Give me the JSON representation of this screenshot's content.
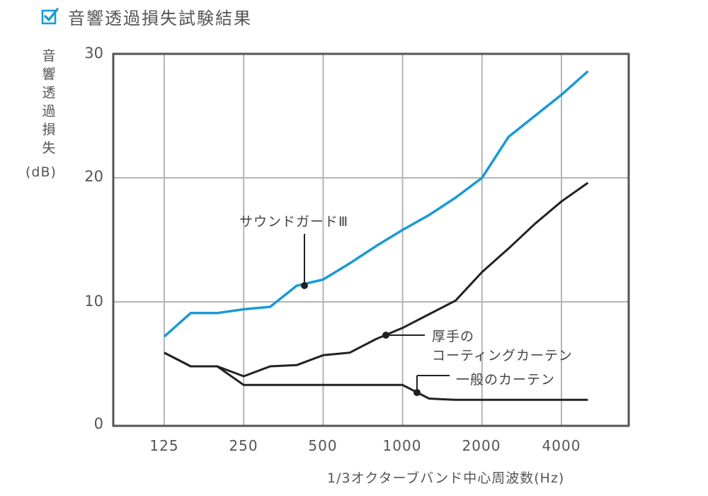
{
  "header": {
    "title": "音響透過損失試験結果",
    "icon": "checkbox-checked-icon",
    "icon_color": "#1a9ad6"
  },
  "chart_data": {
    "type": "line",
    "title": "音響透過損失試験結果",
    "xlabel": "1/3オクターブバンド中心周波数(Hz)",
    "ylabel": "音響透過損失(dB)",
    "ylabel_chars": [
      "音",
      "響",
      "透",
      "過",
      "損",
      "失"
    ],
    "ylabel_unit": "(dB)",
    "ylim": [
      0,
      30
    ],
    "yticks": [
      "0",
      "10",
      "20",
      "30"
    ],
    "xticks": [
      "125",
      "250",
      "500",
      "1000",
      "2000",
      "4000"
    ],
    "x": [
      125,
      160,
      200,
      250,
      315,
      400,
      500,
      630,
      800,
      1000,
      1250,
      1600,
      2000,
      2500,
      3150,
      4000,
      5000
    ],
    "grid": true,
    "legend_position": "inline annotations",
    "series": [
      {
        "name": "サウンドガードⅢ",
        "color": "#1a9ad6",
        "values": [
          7.2,
          9.1,
          9.1,
          9.4,
          9.6,
          11.3,
          11.8,
          13.1,
          14.5,
          15.8,
          17.0,
          18.4,
          20.0,
          23.3,
          25.0,
          26.7,
          28.6
        ]
      },
      {
        "name": "厚手のコーティングカーテン",
        "color": "#222222",
        "values": [
          5.9,
          4.8,
          4.8,
          4.0,
          4.8,
          4.9,
          5.7,
          5.9,
          7.0,
          7.9,
          9.0,
          10.1,
          12.4,
          14.3,
          16.3,
          18.1,
          19.6
        ]
      },
      {
        "name": "一般のカーテン",
        "color": "#222222",
        "values": [
          5.9,
          4.8,
          4.8,
          3.3,
          3.3,
          3.3,
          3.3,
          3.3,
          3.3,
          3.3,
          2.2,
          2.1,
          2.1,
          2.1,
          2.1,
          2.1,
          2.1
        ]
      }
    ],
    "annotations": [
      {
        "label": "サウンドガードⅢ",
        "series": 0
      },
      {
        "label_line1": "厚手の",
        "label_line2": "コーティングカーテン",
        "series": 1
      },
      {
        "label": "一般のカーテン",
        "series": 2
      }
    ]
  }
}
